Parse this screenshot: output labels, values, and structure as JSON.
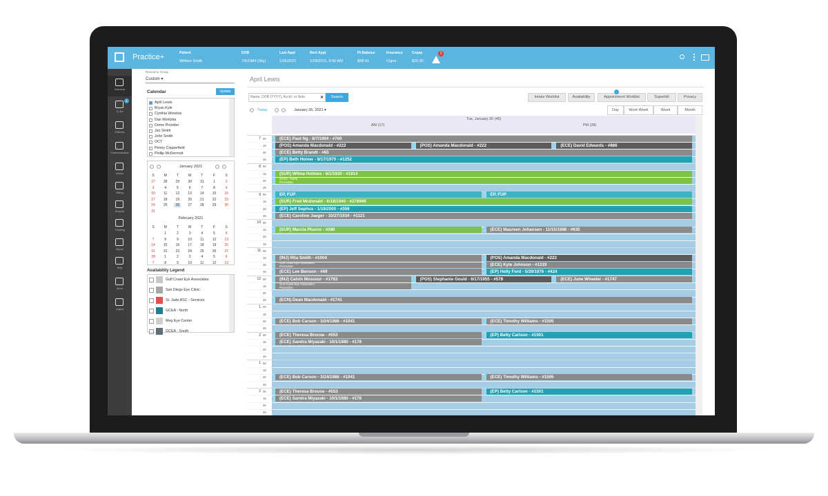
{
  "header": {
    "app_name": "Practice+",
    "fields": [
      {
        "label": "Patient",
        "value": "William Smith"
      },
      {
        "label": "DOB",
        "value": "7/6/1984 (36y)"
      },
      {
        "label": "Last Appt",
        "value": "1/26/2021"
      },
      {
        "label": "Next Appt",
        "value": "1/29/2021, 9:00 AM"
      },
      {
        "label": "Pt Balance",
        "value": "$98.41"
      },
      {
        "label": "Insurance",
        "value": "Cigna"
      },
      {
        "label": "Copay",
        "value": "$20.00"
      }
    ],
    "alert_count": "2"
  },
  "sidebar": [
    {
      "label": "Schedule"
    },
    {
      "label": "To-Do",
      "badge": "1"
    },
    {
      "label": "Patients"
    },
    {
      "label": "Communication"
    },
    {
      "label": "Admin"
    },
    {
      "label": "Billing"
    },
    {
      "label": "Reports"
    },
    {
      "label": "Tracking"
    },
    {
      "label": "Import"
    },
    {
      "label": "Help"
    },
    {
      "label": "More"
    },
    {
      "label": "Logout"
    }
  ],
  "left_panel": {
    "resource_group_label": "Resource Group",
    "resource_group": "Custom",
    "calendar_heading": "Calendar",
    "update_button": "Update",
    "providers": [
      {
        "name": "April Lewis",
        "checked": true
      },
      {
        "name": "Bryan Kyle",
        "checked": false
      },
      {
        "name": "Cynthia Winslow",
        "checked": false
      },
      {
        "name": "Dan Moritzka",
        "checked": false
      },
      {
        "name": "Demo Provider",
        "checked": false
      },
      {
        "name": "Jan Smith",
        "checked": false
      },
      {
        "name": "John Smith",
        "checked": false
      },
      {
        "name": "OCT",
        "checked": false
      },
      {
        "name": "Penny Copperfield",
        "checked": false
      },
      {
        "name": "Phillip McDermott",
        "checked": false
      }
    ],
    "months": [
      {
        "title": "January 2021",
        "weekdays": [
          "S",
          "M",
          "T",
          "W",
          "T",
          "F",
          "S"
        ],
        "selected": "26",
        "weeks": [
          [
            "27",
            "28",
            "29",
            "30",
            "31",
            "1",
            "2"
          ],
          [
            "3",
            "4",
            "5",
            "6",
            "7",
            "8",
            "9"
          ],
          [
            "10",
            "11",
            "12",
            "13",
            "14",
            "15",
            "16"
          ],
          [
            "17",
            "18",
            "19",
            "20",
            "21",
            "22",
            "23"
          ],
          [
            "24",
            "25",
            "26",
            "27",
            "28",
            "29",
            "30"
          ],
          [
            "31"
          ]
        ]
      },
      {
        "title": "February 2021",
        "weekdays": [
          "S",
          "M",
          "T",
          "W",
          "T",
          "F",
          "S"
        ],
        "weeks": [
          [
            null,
            "1",
            "2",
            "3",
            "4",
            "5",
            "6"
          ],
          [
            "7",
            "8",
            "9",
            "10",
            "11",
            "12",
            "13"
          ],
          [
            "14",
            "15",
            "16",
            "17",
            "18",
            "19",
            "20"
          ],
          [
            "21",
            "22",
            "23",
            "24",
            "25",
            "26",
            "27"
          ],
          [
            "28",
            "1",
            "2",
            "3",
            "4",
            "5",
            "6"
          ],
          [
            "7",
            "8",
            "9",
            "10",
            "11",
            "12",
            "13"
          ]
        ]
      }
    ],
    "legend_title": "Availability Legend",
    "legend": [
      {
        "name": "Gulf Coast Eye Associates",
        "color": "#c9c9c9"
      },
      {
        "name": "San Diego Eye Clinic",
        "color": "#a8a8a8"
      },
      {
        "name": "St. Jude ASC - Services",
        "color": "#d9534f"
      },
      {
        "name": "GCEA - North",
        "color": "#1f7f8f"
      },
      {
        "name": "Meg Eye Center",
        "color": "#cfcfcf"
      },
      {
        "name": "GCEA - South",
        "color": "#5f6f75"
      }
    ]
  },
  "main": {
    "title": "April Lewis",
    "search_placeholder": "Name, DOB (YYYY), Acct#, or Note",
    "search_button": "Search",
    "actions": [
      "Intake Worklist",
      "Availability",
      "Appointment Worklist",
      "Superbill",
      "Privacy"
    ],
    "today_button": "Today",
    "date": "January 26, 2021",
    "views": [
      "Day",
      "Work Week",
      "Week",
      "Month"
    ],
    "column_title": "Tue, January 26 (45)",
    "am_label": "AM (17)",
    "pm_label": "PM (28)"
  },
  "schedule": {
    "minutes": [
      "00",
      "15",
      "30",
      "45"
    ],
    "hours": [
      {
        "label": "7",
        "quarters": [
          [
            {
              "text": "(ECE) Paul Ng - 8/7/1994 - #760",
              "color": "#8a8a8a"
            }
          ],
          [
            {
              "text": "(POS) Amanda Macdonald - #222",
              "color": "#5c5c5c"
            },
            {
              "text": "(POS) Amanda Macdonald - #222",
              "color": "#5c5c5c"
            },
            {
              "text": "(ECE) David Edwards - #886",
              "color": "#5c5c5c"
            }
          ],
          [
            {
              "text": "(ECE) Betty Brandt - #65",
              "color": "#8a8a8a"
            }
          ],
          [
            {
              "text": "(EP) Beth Homer - 8/17/1970 - #1252",
              "color": "#1fa3b3"
            }
          ]
        ]
      },
      {
        "label": "8",
        "quarters": [
          [],
          [
            {
              "text": "(SUR) Wilma Holmes - 6/1/1920 - #1914",
              "color": "#7cc243",
              "details": [
                "GCEA - North",
                "Procedure"
              ]
            }
          ],
          [],
          []
        ]
      },
      {
        "label": "9",
        "quarters": [
          [
            {
              "text": "EP, FUP",
              "color": "#3fb3c4"
            },
            {
              "text": "EP, FUP",
              "color": "#3fb3c4"
            }
          ],
          [
            {
              "text": "(SUR) Fred Mcdonald - 6/18/1940 - #278999",
              "color": "#7cc243"
            }
          ],
          [
            {
              "text": "(EP) Jeff Sephus - 1/19/2000 - #359",
              "color": "#1fa3b3"
            }
          ],
          [
            {
              "text": "(ECE) Caroline Jaeger - 10/27/1934 - #1121",
              "color": "#8a8a8a"
            }
          ]
        ]
      },
      {
        "label": "10",
        "quarters": [
          [],
          [
            {
              "text": "(SUR) Marcia Pluuno - #280",
              "color": "#7cc243"
            },
            {
              "text": "(ECE) Maureen Johansen - 11/15/1988 - #635",
              "color": "#8a8a8a"
            }
          ],
          [],
          []
        ]
      },
      {
        "label": "11",
        "quarters": [
          [],
          [
            {
              "text": "(INJ) Rita Smith - #1004",
              "color": "#8a8a8a",
              "details": [
                "Gulf Coast Eye Associates",
                "Procedure"
              ]
            },
            {
              "text": "(POS) Amanda Macdonald - #222",
              "color": "#5c5c5c"
            }
          ],
          [
            null,
            {
              "text": "(ECE) Kyle Johnson - #1319",
              "color": "#8a8a8a"
            }
          ],
          [
            {
              "text": "(ECE) Lee Benson - #69",
              "color": "#8a8a8a"
            },
            {
              "text": "(EP) Holly Ford - 5/29/1976 - #424",
              "color": "#1fa3b3"
            }
          ]
        ]
      },
      {
        "label": "12",
        "quarters": [
          [
            {
              "text": "(INJ) Calvin Mossour - #1763",
              "color": "#8a8a8a",
              "details": [
                "Gulf Coast Eye Associates",
                "Procedure"
              ]
            },
            {
              "text": "(POS) Stephanie Gould - 6/17/1955 - #578",
              "color": "#5c5c5c"
            },
            {
              "text": "(ECE) June Wheeler - #1747",
              "color": "#8a8a8a"
            }
          ],
          [],
          [],
          [
            {
              "text": "(ECN) Dean Macdonald - #1741",
              "color": "#8a8a8a"
            }
          ]
        ]
      },
      {
        "label": "1",
        "quarters": [
          [],
          [],
          [
            {
              "text": "(ECE) Bob Carson - 3/24/1986 - #1041",
              "color": "#8a8a8a"
            },
            {
              "text": "(ECE) Timothy Williams - #1505",
              "color": "#8a8a8a"
            }
          ],
          []
        ]
      },
      {
        "label": "2",
        "quarters": [
          [
            {
              "text": "(ECE) Theresa Brouse - #553",
              "color": "#8a8a8a"
            },
            {
              "text": "(EP) Betty Carlson - #1501",
              "color": "#1fa3b3"
            }
          ],
          [
            {
              "text": "(ECE) Sandra Miyazaki - 10/1/1980 - #178",
              "color": "#8a8a8a"
            },
            null
          ],
          [],
          []
        ]
      },
      {
        "label": "1",
        "quarters": [
          [],
          [],
          [
            {
              "text": "(ECE) Bob Carson - 3/24/1986 - #1041",
              "color": "#8a8a8a"
            },
            {
              "text": "(ECE) Timothy Williams - #1505",
              "color": "#8a8a8a"
            }
          ],
          []
        ]
      },
      {
        "label": "2",
        "quarters": [
          [
            {
              "text": "(ECE) Theresa Brouse - #553",
              "color": "#8a8a8a"
            },
            {
              "text": "(EP) Betty Carlson - #1501",
              "color": "#1fa3b3"
            }
          ],
          [
            {
              "text": "(ECE) Sandra Miyazaki - 10/1/1980 - #178",
              "color": "#8a8a8a"
            },
            null
          ],
          [],
          []
        ]
      }
    ]
  }
}
